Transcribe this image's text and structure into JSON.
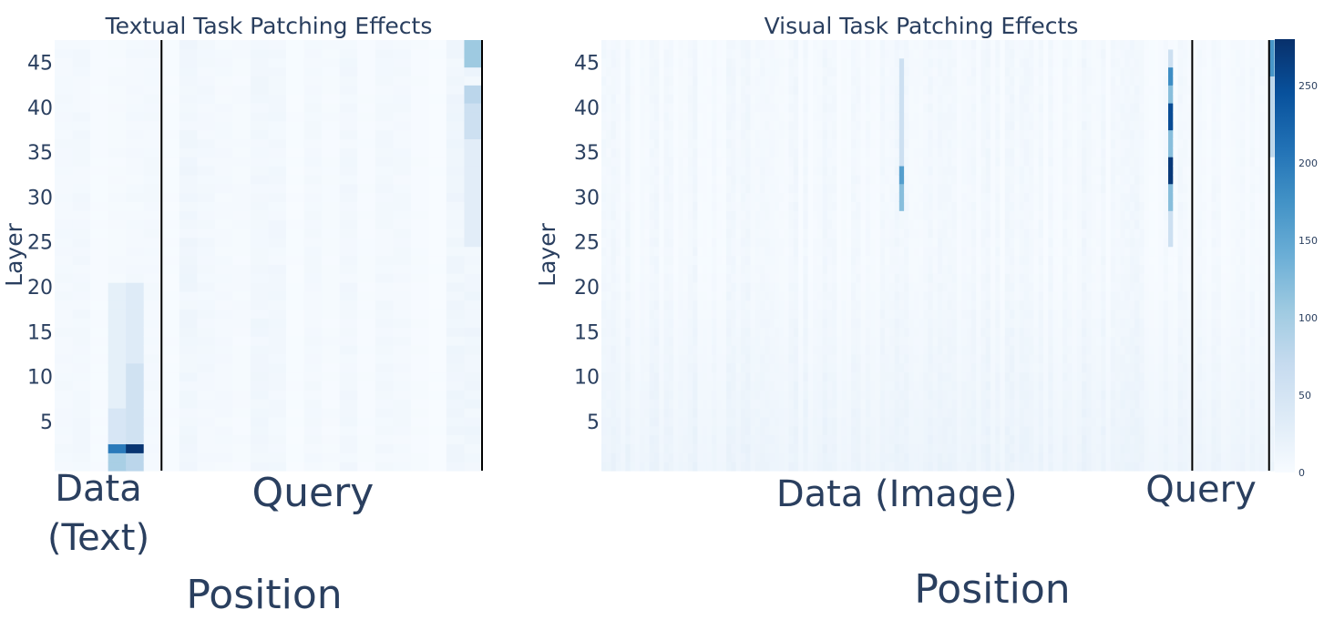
{
  "chart_data": [
    {
      "type": "heatmap",
      "title": "Textual Task Patching Effects",
      "xlabel": "Position",
      "ylabel": "Layer",
      "y_ticks": [
        5,
        10,
        15,
        20,
        25,
        30,
        35,
        40,
        45
      ],
      "ylim": [
        0,
        48
      ],
      "colorscale": "Blues",
      "positions": 24,
      "dividers_after_position": [
        5,
        23
      ],
      "regions": [
        {
          "label_lines": [
            "Data",
            "(Text)"
          ],
          "start": 0,
          "end": 5
        },
        {
          "label_lines": [
            "Query"
          ],
          "start": 5,
          "end": 23
        }
      ],
      "hotspots": [
        {
          "position": 3,
          "layers": [
            2
          ],
          "value": 200
        },
        {
          "position": 4,
          "layers": [
            2
          ],
          "value": 275
        },
        {
          "position": 3,
          "layers": [
            0,
            1
          ],
          "value": 95
        },
        {
          "position": 4,
          "layers": [
            0,
            1
          ],
          "value": 80
        },
        {
          "position": 3,
          "layers": [
            3,
            4,
            5,
            6
          ],
          "value": 45
        },
        {
          "position": 4,
          "layers": [
            3,
            4,
            5,
            6,
            7,
            8,
            9,
            10,
            11
          ],
          "value": 55
        },
        {
          "position": 4,
          "layers": [
            12,
            13,
            14,
            15,
            16,
            17,
            18,
            19,
            20
          ],
          "value": 35
        },
        {
          "position": 3,
          "layers": [
            7,
            8,
            9,
            10,
            11,
            12,
            13,
            14,
            15,
            16,
            17,
            18,
            19,
            20
          ],
          "value": 25
        },
        {
          "position": 23,
          "layers": [
            45,
            46,
            47
          ],
          "value": 105
        },
        {
          "position": 23,
          "layers": [
            41,
            42
          ],
          "value": 80
        },
        {
          "position": 23,
          "layers": [
            37,
            38,
            39,
            40
          ],
          "value": 60
        },
        {
          "position": 23,
          "layers": [
            25,
            26,
            27,
            28,
            29,
            30,
            31,
            32,
            33,
            34,
            35,
            36
          ],
          "value": 30
        }
      ]
    },
    {
      "type": "heatmap",
      "title": "Visual Task Patching Effects",
      "xlabel": "Position",
      "ylabel": "Layer",
      "y_ticks": [
        5,
        10,
        15,
        20,
        25,
        30,
        35,
        40,
        45
      ],
      "ylim": [
        0,
        48
      ],
      "colorscale": "Blues",
      "colorbar_ticks": [
        0,
        50,
        100,
        150,
        200,
        250
      ],
      "colorbar_range": [
        0,
        280
      ],
      "positions": 140,
      "dividers_after_position": [
        122,
        138
      ],
      "regions": [
        {
          "label_lines": [
            "Data (Image)"
          ],
          "start": 0,
          "end": 122
        },
        {
          "label_lines": [
            "Query"
          ],
          "start": 122,
          "end": 138
        }
      ],
      "hotspots": [
        {
          "position": 62,
          "layers": [
            32,
            33
          ],
          "value": 160
        },
        {
          "position": 62,
          "layers": [
            29,
            30,
            31
          ],
          "value": 120
        },
        {
          "position": 62,
          "layers": [
            34,
            35,
            36,
            37,
            38,
            39,
            40,
            41,
            42,
            43,
            44,
            45
          ],
          "value": 60
        },
        {
          "position": 118,
          "layers": [
            32,
            33,
            34
          ],
          "value": 270
        },
        {
          "position": 118,
          "layers": [
            38,
            39,
            40
          ],
          "value": 250
        },
        {
          "position": 118,
          "layers": [
            43,
            44
          ],
          "value": 180
        },
        {
          "position": 118,
          "layers": [
            29,
            30,
            31,
            35,
            36,
            37,
            41,
            42
          ],
          "value": 120
        },
        {
          "position": 118,
          "layers": [
            25,
            26,
            27,
            28,
            45,
            46
          ],
          "value": 60
        },
        {
          "position": 139,
          "layers": [
            44,
            45,
            46,
            47
          ],
          "value": 170
        },
        {
          "position": 139,
          "layers": [
            35,
            36,
            37,
            38,
            39,
            40,
            41,
            42,
            43
          ],
          "value": 80
        }
      ]
    }
  ]
}
